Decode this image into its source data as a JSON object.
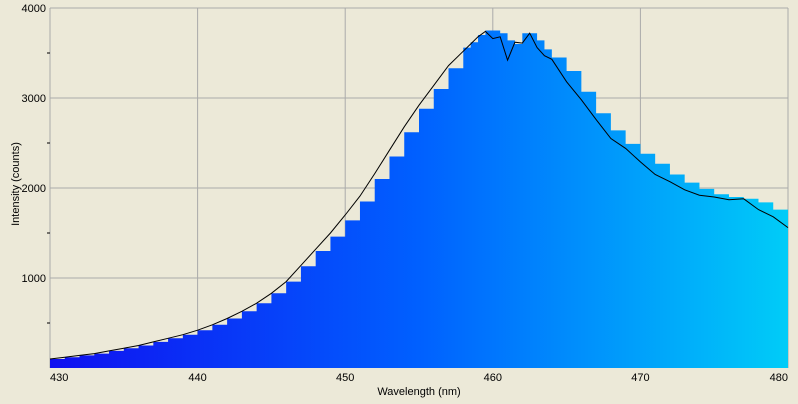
{
  "chart_data": {
    "type": "area",
    "title": "",
    "xlabel": "Wavelength (nm)",
    "ylabel": "Intensity (counts)",
    "xlim": [
      430,
      480
    ],
    "ylim": [
      0,
      4000
    ],
    "x_ticks": [
      430,
      440,
      450,
      460,
      470,
      480
    ],
    "y_ticks": [
      1000,
      2000,
      3000,
      4000
    ],
    "grid": true,
    "legend": "none",
    "colors": {
      "background": "#ece9d8",
      "grid": "#aaaaaa",
      "fill_start": "#1010f0",
      "fill_mid": "#0060ff",
      "fill_end": "#00ccf8",
      "line": "#000000"
    },
    "series": [
      {
        "x": [
          430,
          431,
          432,
          433,
          434,
          435,
          436,
          437,
          438,
          439,
          440,
          441,
          442,
          443,
          444,
          445,
          446,
          447,
          448,
          449,
          450,
          451,
          452,
          453,
          454,
          455,
          456,
          457,
          458,
          458.5,
          459,
          459.5,
          460,
          460.5,
          461,
          461.5,
          462,
          462.5,
          463,
          463.5,
          464,
          465,
          466,
          467,
          468,
          469,
          470,
          471,
          472,
          473,
          474,
          475,
          476,
          477,
          478,
          479,
          480
        ],
        "bars": [
          100,
          120,
          140,
          160,
          190,
          220,
          250,
          290,
          330,
          370,
          420,
          480,
          550,
          630,
          720,
          830,
          960,
          1130,
          1300,
          1460,
          1640,
          1850,
          2100,
          2350,
          2620,
          2880,
          3100,
          3330,
          3560,
          3620,
          3700,
          3750,
          3750,
          3720,
          3640,
          3600,
          3720,
          3720,
          3640,
          3540,
          3450,
          3300,
          3070,
          2830,
          2640,
          2490,
          2380,
          2270,
          2150,
          2060,
          1990,
          1930,
          1900,
          1880,
          1840,
          1760,
          1700
        ],
        "line": [
          100,
          120,
          140,
          160,
          190,
          220,
          250,
          290,
          330,
          370,
          420,
          480,
          550,
          630,
          720,
          830,
          960,
          1140,
          1320,
          1500,
          1700,
          1910,
          2160,
          2420,
          2680,
          2920,
          3140,
          3360,
          3520,
          3600,
          3680,
          3740,
          3660,
          3680,
          3420,
          3620,
          3610,
          3720,
          3560,
          3470,
          3430,
          3180,
          2980,
          2760,
          2550,
          2440,
          2290,
          2150,
          2070,
          1980,
          1920,
          1900,
          1870,
          1880,
          1760,
          1680,
          1560
        ]
      }
    ]
  }
}
